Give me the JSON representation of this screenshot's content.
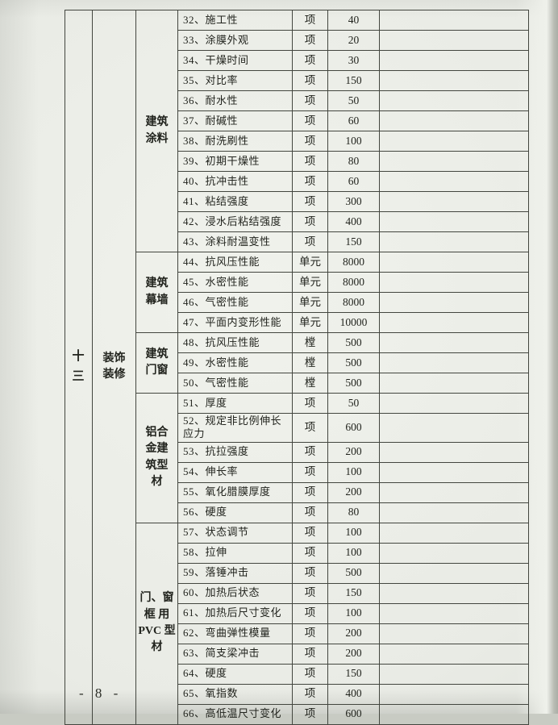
{
  "page": {
    "footer": "- 8 -"
  },
  "table": {
    "section": {
      "number": "十\n三",
      "name": "装饰\n装修"
    },
    "groups": [
      {
        "category": "建筑\n涂料",
        "rows": [
          {
            "item": "32、施工性",
            "unit": "项",
            "value": "40"
          },
          {
            "item": "33、涂膜外观",
            "unit": "项",
            "value": "20"
          },
          {
            "item": "34、干燥时间",
            "unit": "项",
            "value": "30"
          },
          {
            "item": "35、对比率",
            "unit": "项",
            "value": "150"
          },
          {
            "item": "36、耐水性",
            "unit": "项",
            "value": "50"
          },
          {
            "item": "37、耐碱性",
            "unit": "项",
            "value": "60"
          },
          {
            "item": "38、耐洗刷性",
            "unit": "项",
            "value": "100"
          },
          {
            "item": "39、初期干燥性",
            "unit": "项",
            "value": "80"
          },
          {
            "item": "40、抗冲击性",
            "unit": "项",
            "value": "60"
          },
          {
            "item": "41、粘结强度",
            "unit": "项",
            "value": "300"
          },
          {
            "item": "42、浸水后粘结强度",
            "unit": "项",
            "value": "400"
          },
          {
            "item": "43、涂料耐温变性",
            "unit": "项",
            "value": "150"
          }
        ]
      },
      {
        "category": "建筑\n幕墙",
        "rows": [
          {
            "item": "44、抗风压性能",
            "unit": "单元",
            "value": "8000"
          },
          {
            "item": "45、水密性能",
            "unit": "单元",
            "value": "8000"
          },
          {
            "item": "46、气密性能",
            "unit": "单元",
            "value": "8000"
          },
          {
            "item": "47、平面内变形性能",
            "unit": "单元",
            "value": "10000"
          }
        ]
      },
      {
        "category": "建筑\n门窗",
        "rows": [
          {
            "item": "48、抗风压性能",
            "unit": "樘",
            "value": "500"
          },
          {
            "item": "49、水密性能",
            "unit": "樘",
            "value": "500"
          },
          {
            "item": "50、气密性能",
            "unit": "樘",
            "value": "500"
          }
        ]
      },
      {
        "category": "铝合\n金建\n筑型\n材",
        "rows": [
          {
            "item": "51、厚度",
            "unit": "项",
            "value": "50"
          },
          {
            "item": "52、规定非比例伸长应力",
            "unit": "项",
            "value": "600"
          },
          {
            "item": "53、抗拉强度",
            "unit": "项",
            "value": "200"
          },
          {
            "item": "54、伸长率",
            "unit": "项",
            "value": "100"
          },
          {
            "item": "55、氧化腊膜厚度",
            "unit": "项",
            "value": "200"
          },
          {
            "item": "56、硬度",
            "unit": "项",
            "value": "80"
          }
        ]
      },
      {
        "category": "门、窗\n框 用\nPVC 型\n材",
        "rows": [
          {
            "item": "57、状态调节",
            "unit": "项",
            "value": "100"
          },
          {
            "item": "58、拉伸",
            "unit": "项",
            "value": "100"
          },
          {
            "item": "59、落锤冲击",
            "unit": "项",
            "value": "500"
          },
          {
            "item": "60、加热后状态",
            "unit": "项",
            "value": "150"
          },
          {
            "item": "61、加热后尺寸变化",
            "unit": "项",
            "value": "100"
          },
          {
            "item": "62、弯曲弹性模量",
            "unit": "项",
            "value": "200"
          },
          {
            "item": "63、简支梁冲击",
            "unit": "项",
            "value": "200"
          },
          {
            "item": "64、硬度",
            "unit": "项",
            "value": "150"
          },
          {
            "item": "65、氧指数",
            "unit": "项",
            "value": "400"
          },
          {
            "item": "66、高低温尺寸变化",
            "unit": "项",
            "value": "600"
          }
        ]
      }
    ]
  }
}
